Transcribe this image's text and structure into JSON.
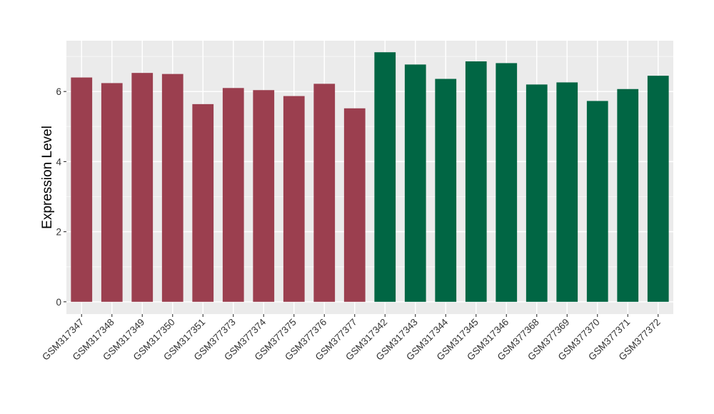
{
  "chart_data": {
    "type": "bar",
    "title": "",
    "xlabel": "",
    "ylabel": "Expression Level",
    "ylim": [
      -0.35,
      7.45
    ],
    "yticks": [
      0,
      2,
      4,
      6
    ],
    "grid": true,
    "legend": "none",
    "colors": {
      "panel": "#EBEBEB",
      "grid_major": "#FFFFFF",
      "grid_minor": "#F5F5F5",
      "group_a": "#9B3F4F",
      "group_b": "#016644",
      "tick": "#333333"
    },
    "categories": [
      "GSM317347",
      "GSM317348",
      "GSM317349",
      "GSM317350",
      "GSM317351",
      "GSM377373",
      "GSM377374",
      "GSM377375",
      "GSM377376",
      "GSM377377",
      "GSM317342",
      "GSM317343",
      "GSM317344",
      "GSM317345",
      "GSM317346",
      "GSM377368",
      "GSM377369",
      "GSM377370",
      "GSM377371",
      "GSM377372"
    ],
    "values": [
      6.4,
      6.24,
      6.53,
      6.5,
      5.64,
      6.1,
      6.04,
      5.87,
      6.22,
      5.52,
      7.12,
      6.77,
      6.36,
      6.86,
      6.81,
      6.2,
      6.26,
      5.73,
      6.07,
      6.45
    ],
    "groups": [
      "a",
      "a",
      "a",
      "a",
      "a",
      "a",
      "a",
      "a",
      "a",
      "a",
      "b",
      "b",
      "b",
      "b",
      "b",
      "b",
      "b",
      "b",
      "b",
      "b"
    ]
  }
}
